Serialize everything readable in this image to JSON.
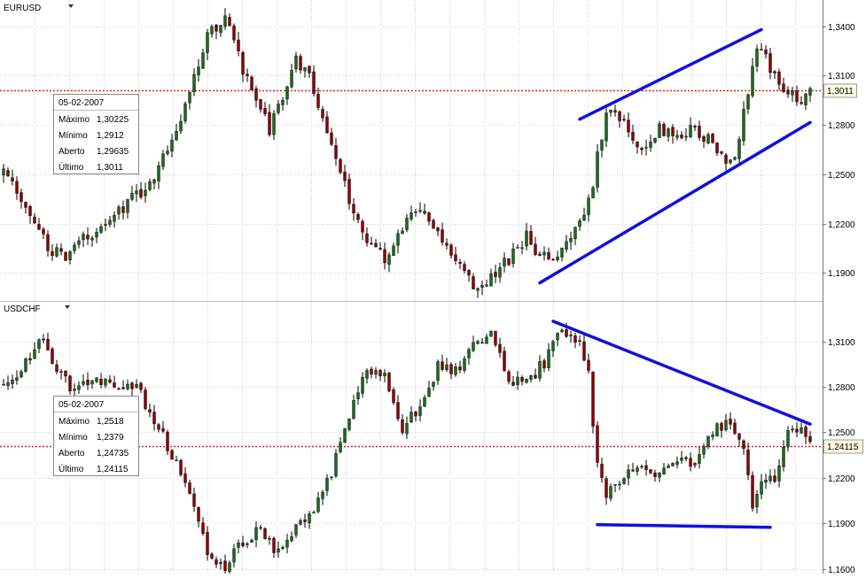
{
  "chart_data": [
    {
      "type": "candlestick",
      "symbol": "EURUSD",
      "y_axis_ticks": [
        "1,3400",
        "1,3100",
        "1,2800",
        "1,2500",
        "1,2200",
        "1,1900"
      ],
      "y_axis_values": [
        1.34,
        1.31,
        1.28,
        1.25,
        1.22,
        1.19
      ],
      "ylim": [
        1.173,
        1.356
      ],
      "last_price_label": "1,3011",
      "last_price": 1.3011,
      "info_box": {
        "date": "05-02-2007",
        "rows": [
          {
            "label": "Máximo",
            "value": "1,30225"
          },
          {
            "label": "Mínimo",
            "value": "1,2912"
          },
          {
            "label": "Aberto",
            "value": "1,29635"
          },
          {
            "label": "Último",
            "value": "1,3011"
          }
        ]
      },
      "anchors": [
        [
          0,
          1.25
        ],
        [
          6,
          1.226
        ],
        [
          10,
          1.205
        ],
        [
          14,
          1.198
        ],
        [
          18,
          1.21
        ],
        [
          23,
          1.222
        ],
        [
          28,
          1.232
        ],
        [
          33,
          1.245
        ],
        [
          36,
          1.262
        ],
        [
          40,
          1.285
        ],
        [
          43,
          1.31
        ],
        [
          46,
          1.333
        ],
        [
          50,
          1.345
        ],
        [
          53,
          1.322
        ],
        [
          56,
          1.3
        ],
        [
          60,
          1.278
        ],
        [
          63,
          1.296
        ],
        [
          66,
          1.32
        ],
        [
          69,
          1.31
        ],
        [
          72,
          1.285
        ],
        [
          75,
          1.26
        ],
        [
          78,
          1.235
        ],
        [
          82,
          1.21
        ],
        [
          86,
          1.198
        ],
        [
          90,
          1.218
        ],
        [
          94,
          1.228
        ],
        [
          98,
          1.215
        ],
        [
          102,
          1.2
        ],
        [
          106,
          1.183
        ],
        [
          110,
          1.186
        ],
        [
          114,
          1.198
        ],
        [
          118,
          1.212
        ],
        [
          121,
          1.198
        ],
        [
          124,
          1.2
        ],
        [
          127,
          1.206
        ],
        [
          130,
          1.22
        ],
        [
          133,
          1.246
        ],
        [
          136,
          1.288
        ],
        [
          140,
          1.285
        ],
        [
          144,
          1.262
        ],
        [
          148,
          1.278
        ],
        [
          152,
          1.272
        ],
        [
          156,
          1.278
        ],
        [
          160,
          1.268
        ],
        [
          164,
          1.256
        ],
        [
          166,
          1.272
        ],
        [
          168,
          1.3
        ],
        [
          170,
          1.328
        ],
        [
          173,
          1.315
        ],
        [
          176,
          1.303
        ],
        [
          180,
          1.296
        ],
        [
          182,
          1.3
        ]
      ],
      "trendlines": [
        [
          [
            130,
            1.2835
          ],
          [
            171,
            1.338
          ]
        ],
        [
          [
            121,
            1.184
          ],
          [
            182,
            1.2815
          ]
        ]
      ],
      "seed": 7
    },
    {
      "type": "candlestick",
      "symbol": "USDCHF",
      "y_axis_ticks": [
        "1,3100",
        "1,2800",
        "1,2500",
        "1,2200",
        "1,1900",
        "1,1600"
      ],
      "y_axis_values": [
        1.31,
        1.28,
        1.25,
        1.22,
        1.19,
        1.16
      ],
      "ylim": [
        1.157,
        1.336
      ],
      "last_price_label": "1,24115",
      "last_price": 1.24115,
      "info_box": {
        "date": "05-02-2007",
        "rows": [
          {
            "label": "Máximo",
            "value": "1,2518"
          },
          {
            "label": "Mínimo",
            "value": "1,2379"
          },
          {
            "label": "Aberto",
            "value": "1,24735"
          },
          {
            "label": "Último",
            "value": "1,24115"
          }
        ]
      },
      "anchors": [
        [
          0,
          1.282
        ],
        [
          4,
          1.29
        ],
        [
          8,
          1.313
        ],
        [
          12,
          1.293
        ],
        [
          16,
          1.276
        ],
        [
          20,
          1.284
        ],
        [
          26,
          1.279
        ],
        [
          30,
          1.281
        ],
        [
          34,
          1.258
        ],
        [
          38,
          1.236
        ],
        [
          42,
          1.206
        ],
        [
          46,
          1.172
        ],
        [
          50,
          1.161
        ],
        [
          54,
          1.178
        ],
        [
          58,
          1.188
        ],
        [
          62,
          1.17
        ],
        [
          66,
          1.19
        ],
        [
          70,
          1.2
        ],
        [
          74,
          1.223
        ],
        [
          78,
          1.26
        ],
        [
          82,
          1.292
        ],
        [
          86,
          1.287
        ],
        [
          90,
          1.252
        ],
        [
          94,
          1.268
        ],
        [
          98,
          1.293
        ],
        [
          102,
          1.29
        ],
        [
          106,
          1.31
        ],
        [
          110,
          1.313
        ],
        [
          114,
          1.285
        ],
        [
          118,
          1.283
        ],
        [
          122,
          1.296
        ],
        [
          126,
          1.318
        ],
        [
          130,
          1.308
        ],
        [
          132,
          1.288
        ],
        [
          134,
          1.228
        ],
        [
          136,
          1.21
        ],
        [
          140,
          1.22
        ],
        [
          144,
          1.231
        ],
        [
          148,
          1.222
        ],
        [
          152,
          1.232
        ],
        [
          156,
          1.228
        ],
        [
          160,
          1.252
        ],
        [
          164,
          1.258
        ],
        [
          167,
          1.242
        ],
        [
          169,
          1.2
        ],
        [
          171,
          1.215
        ],
        [
          174,
          1.22
        ],
        [
          177,
          1.248
        ],
        [
          180,
          1.253
        ],
        [
          182,
          1.241
        ]
      ],
      "trendlines": [
        [
          [
            124,
            1.3232
          ],
          [
            182,
            1.2555
          ]
        ],
        [
          [
            134,
            1.1892
          ],
          [
            173,
            1.1875
          ]
        ]
      ],
      "seed": 13
    }
  ]
}
